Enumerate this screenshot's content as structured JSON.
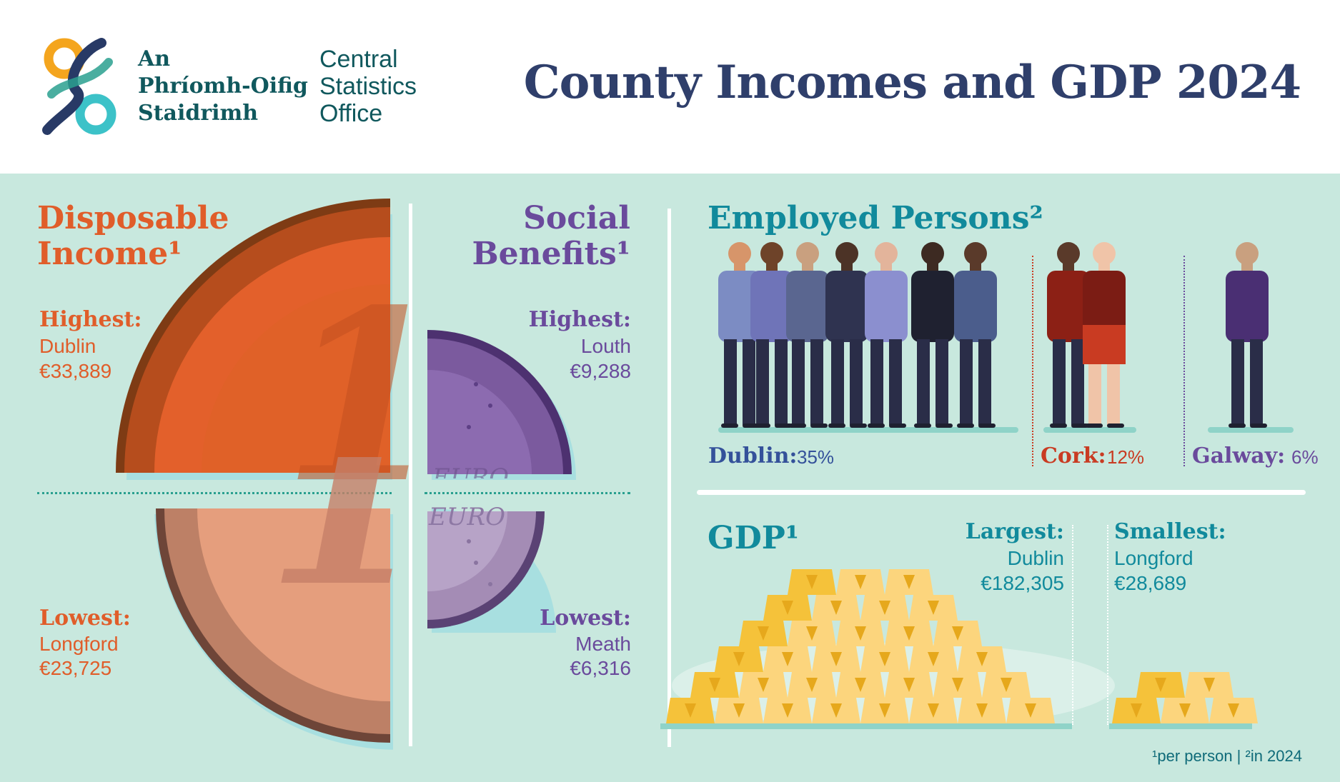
{
  "header": {
    "logo_irish": [
      "An",
      "Phríomh-Oifig",
      "Staidrimh"
    ],
    "logo_english": [
      "Central",
      "Statistics",
      "Office"
    ],
    "title": "County Incomes and GDP 2024"
  },
  "disposable_income": {
    "title_line1": "Disposable",
    "title_line2": "Income¹",
    "highest_label": "Highest:",
    "highest_county": "Dublin",
    "highest_value": "€33,889",
    "lowest_label": "Lowest:",
    "lowest_county": "Longford",
    "lowest_value": "€23,725",
    "coin_numeral": "1"
  },
  "social_benefits": {
    "title_line1": "Social",
    "title_line2": "Benefits¹",
    "highest_label": "Highest:",
    "highest_county": "Louth",
    "highest_value": "€9,288",
    "lowest_label": "Lowest:",
    "lowest_county": "Meath",
    "lowest_value": "€6,316",
    "coin_text": "EURO"
  },
  "employed_persons": {
    "title": "Employed Persons²",
    "groups": [
      {
        "label": "Dublin:",
        "value": "35%",
        "figures": 7
      },
      {
        "label": "Cork:",
        "value": "12%",
        "figures": 2
      },
      {
        "label": "Galway:",
        "value": "6%",
        "figures": 1
      }
    ]
  },
  "gdp": {
    "title": "GDP¹",
    "largest_label": "Largest:",
    "largest_county": "Dublin",
    "largest_value": "€182,305",
    "smallest_label": "Smallest:",
    "smallest_county": "Longford",
    "smallest_value": "€28,689"
  },
  "footnote": "¹per person  |  ²in 2024",
  "colors": {
    "background": "#c8e8de",
    "title": "#2f3f6b",
    "orange": "#e05d2a",
    "purple": "#6a4a9c",
    "teal": "#118a9c",
    "blue": "#34519a",
    "red": "#c93b22",
    "gold": "#f5c23a"
  }
}
